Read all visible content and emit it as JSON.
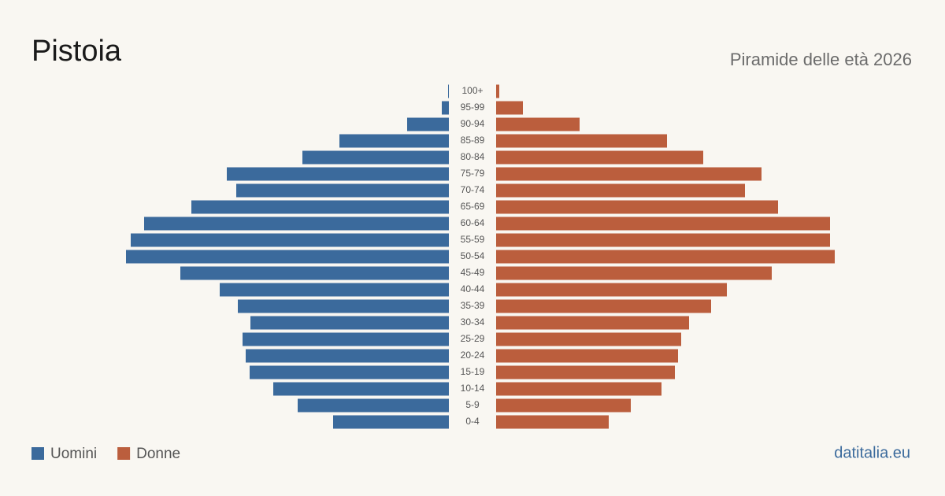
{
  "chart_data": {
    "type": "pyramid",
    "title": "Pistoia",
    "subtitle": "Piramide delle età 2026",
    "source": "datitalia.eu",
    "categories": [
      "100+",
      "95-99",
      "90-94",
      "85-89",
      "80-84",
      "75-79",
      "70-74",
      "65-69",
      "60-64",
      "55-59",
      "50-54",
      "45-49",
      "40-44",
      "35-39",
      "30-34",
      "25-29",
      "20-24",
      "15-19",
      "10-14",
      "5-9",
      "0-4"
    ],
    "series": [
      {
        "name": "Uomini",
        "color": "#3b6a9c",
        "values": [
          9,
          81,
          477,
          1251,
          1674,
          2538,
          2430,
          2943,
          3483,
          3636,
          3690,
          3069,
          2619,
          2412,
          2268,
          2358,
          2322,
          2277,
          2007,
          1728,
          1323
        ]
      },
      {
        "name": "Donne",
        "color": "#bb5e3d",
        "values": [
          36,
          306,
          954,
          1953,
          2367,
          3033,
          2844,
          3222,
          3816,
          3816,
          3870,
          3150,
          2637,
          2457,
          2205,
          2115,
          2079,
          2043,
          1890,
          1539,
          1287
        ]
      }
    ]
  }
}
